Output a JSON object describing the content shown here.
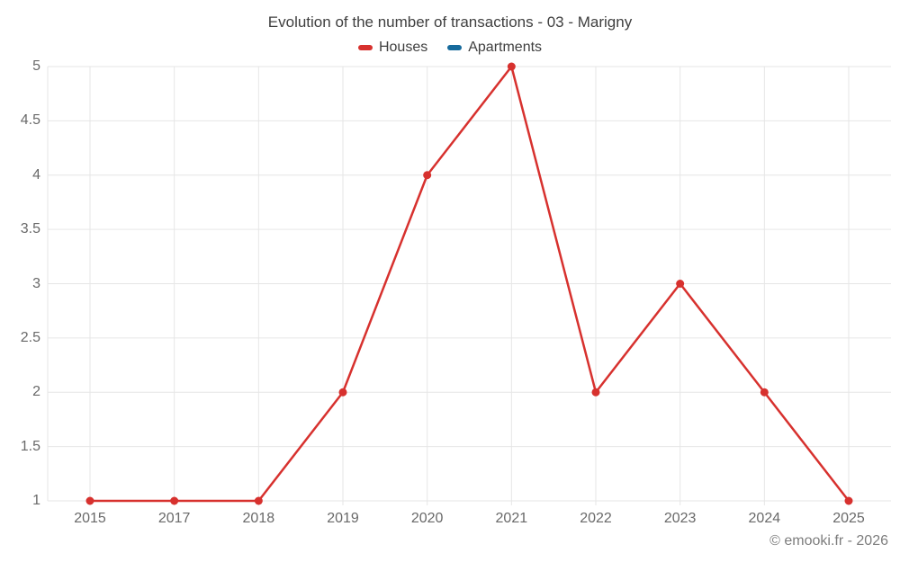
{
  "header": {
    "title": "Evolution of the number of transactions - 03 - Marigny"
  },
  "footer": {
    "watermark": "© emooki.fr - 2026"
  },
  "colors": {
    "houses": "#d7312e",
    "apartments": "#166a9c",
    "gridline": "#e6e6e6",
    "axis_text": "#696969",
    "title_text": "#3f3f3f"
  },
  "chart_data": {
    "type": "line",
    "title": "Evolution of the number of transactions - 03 - Marigny",
    "categories": [
      "2015",
      "2017",
      "2018",
      "2019",
      "2020",
      "2021",
      "2022",
      "2023",
      "2024",
      "2025"
    ],
    "series": [
      {
        "name": "Houses",
        "color": "#d7312e",
        "values": [
          1,
          1,
          1,
          2,
          4,
          5,
          2,
          3,
          2,
          1
        ]
      },
      {
        "name": "Apartments",
        "color": "#166a9c",
        "values": []
      }
    ],
    "xlabel": "",
    "ylabel": "",
    "ylim": [
      1,
      5
    ],
    "y_ticks": [
      1,
      1.5,
      2,
      2.5,
      3,
      3.5,
      4,
      4.5,
      5
    ],
    "grid": true,
    "legend_position": "top",
    "marker": "circle"
  }
}
